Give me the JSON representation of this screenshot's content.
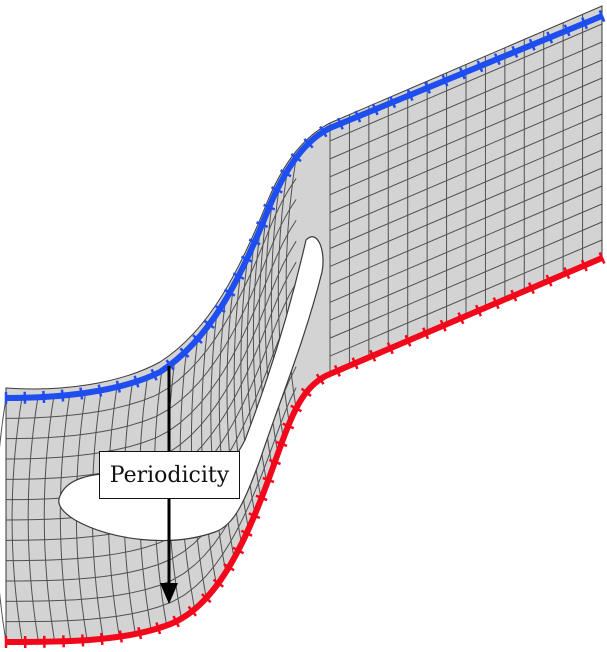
{
  "annotation": {
    "label": "Periodicity"
  },
  "colors": {
    "mesh_fill": "#d3d3d3",
    "mesh_line": "#3a3a3a",
    "upper_boundary": "#1e4df0",
    "lower_boundary": "#f2071b",
    "arrow": "#000000"
  }
}
